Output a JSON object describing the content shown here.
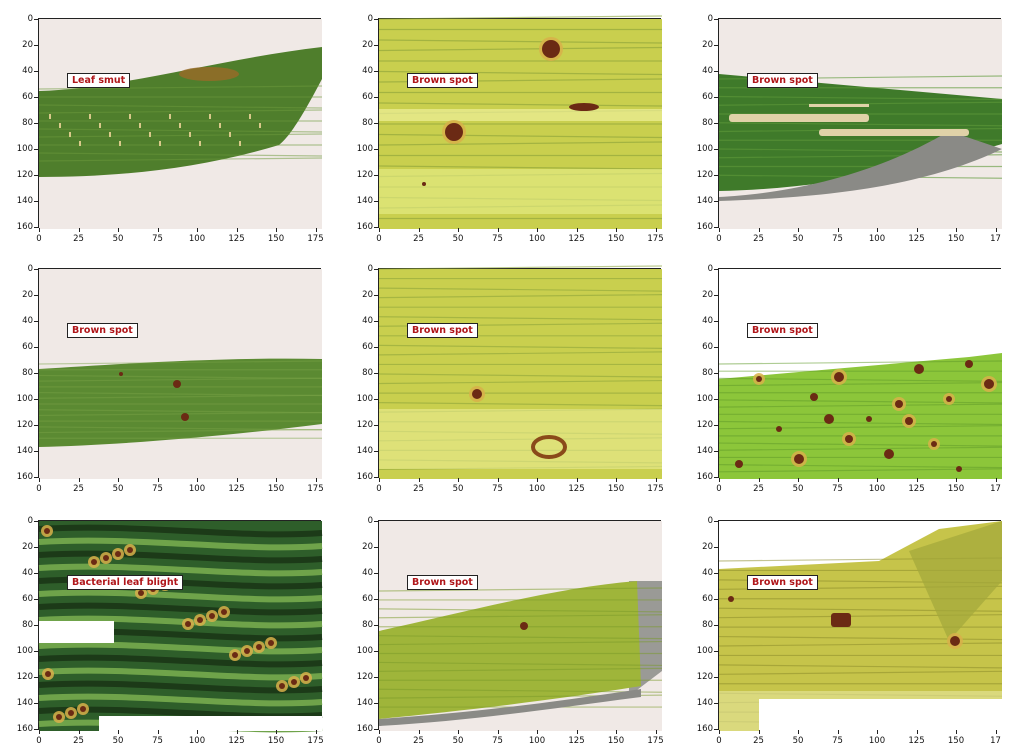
{
  "y_ticks": [
    "0",
    "20",
    "40",
    "60",
    "80",
    "100",
    "120",
    "140",
    "160"
  ],
  "x_ticks": [
    "0",
    "25",
    "50",
    "75",
    "100",
    "125",
    "150",
    "175"
  ],
  "last_col_x_ticks": [
    "0",
    "25",
    "50",
    "75",
    "100",
    "125",
    "150",
    "17"
  ],
  "panels": [
    {
      "label": "Leaf smut",
      "scene": "smut"
    },
    {
      "label": "Brown spot",
      "scene": "yellow-spots-a"
    },
    {
      "label": "Brown spot",
      "scene": "streaks"
    },
    {
      "label": "Brown spot",
      "scene": "thin-leaf"
    },
    {
      "label": "Brown spot",
      "scene": "yellow-spots-b"
    },
    {
      "label": "Brown spot",
      "scene": "bright-dots"
    },
    {
      "label": "Bacterial leaf blight",
      "scene": "blight"
    },
    {
      "label": "Brown spot",
      "scene": "angled-leaf"
    },
    {
      "label": "Brown spot",
      "scene": "overlap-leaf"
    }
  ],
  "colors": {
    "label_text": "#b0161a",
    "background": "#f0e9e6",
    "leaf_green": "#4f7e2c",
    "leaf_yellow": "#c9cf4e",
    "spot": "#6b2a14"
  }
}
